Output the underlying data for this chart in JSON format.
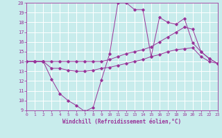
{
  "xlabel": "Windchill (Refroidissement éolien,°C)",
  "bg_color": "#c8ecec",
  "line_color": "#993399",
  "grid_color": "#ffffff",
  "xmin": 0,
  "xmax": 23,
  "ymin": 9,
  "ymax": 20,
  "xticks": [
    0,
    1,
    2,
    3,
    4,
    5,
    6,
    7,
    8,
    9,
    10,
    11,
    12,
    13,
    14,
    15,
    16,
    17,
    18,
    19,
    20,
    21,
    22,
    23
  ],
  "yticks": [
    9,
    10,
    11,
    12,
    13,
    14,
    15,
    16,
    17,
    18,
    19,
    20
  ],
  "line1_x": [
    0,
    1,
    2,
    3,
    4,
    5,
    6,
    7,
    8,
    9,
    10,
    11,
    12,
    13,
    14,
    15,
    16,
    17,
    18,
    19,
    20,
    21,
    22,
    23
  ],
  "line1_y": [
    14.0,
    14.0,
    14.0,
    14.0,
    14.0,
    14.0,
    14.0,
    14.0,
    14.0,
    14.0,
    14.2,
    14.5,
    14.8,
    15.0,
    15.2,
    15.5,
    16.0,
    16.5,
    17.0,
    17.5,
    17.3,
    15.0,
    14.3,
    13.8
  ],
  "line2_x": [
    0,
    1,
    2,
    3,
    4,
    5,
    6,
    7,
    8,
    9,
    10,
    11,
    12,
    13,
    14,
    15,
    16,
    17,
    18,
    19,
    20,
    21,
    22,
    23
  ],
  "line2_y": [
    14.0,
    14.0,
    14.0,
    13.3,
    13.3,
    13.1,
    13.0,
    13.0,
    13.1,
    13.3,
    13.4,
    13.6,
    13.8,
    14.0,
    14.2,
    14.5,
    14.7,
    15.0,
    15.2,
    15.3,
    15.4,
    14.5,
    14.0,
    13.8
  ],
  "line3_x": [
    0,
    1,
    2,
    3,
    4,
    5,
    6,
    7,
    8,
    9,
    10,
    11,
    12,
    13,
    14,
    15,
    16,
    17,
    18,
    19,
    20,
    21,
    22,
    23
  ],
  "line3_y": [
    14.0,
    14.0,
    14.0,
    12.2,
    10.7,
    10.0,
    9.5,
    8.9,
    9.3,
    12.1,
    14.8,
    20.0,
    20.0,
    19.3,
    19.3,
    14.5,
    18.5,
    18.0,
    17.8,
    18.4,
    15.9,
    15.0,
    14.3,
    13.8
  ]
}
